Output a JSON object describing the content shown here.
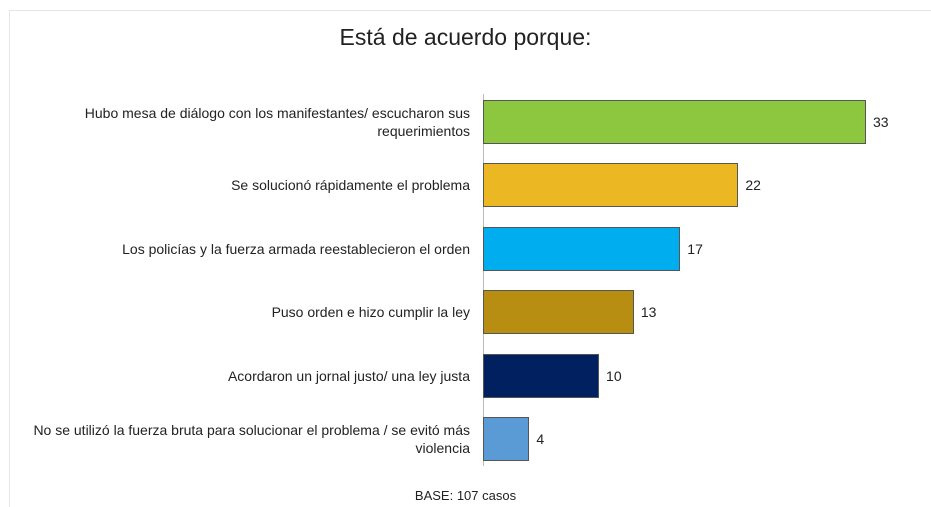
{
  "chart_data": {
    "type": "bar",
    "orientation": "horizontal",
    "title": "Está de acuerdo porque:",
    "categories": [
      "Hubo mesa de diálogo con los manifestantes/ escucharon sus requerimientos",
      "Se solucionó rápidamente el problema",
      "Los policías y la fuerza armada reestablecieron el orden",
      "Puso orden e hizo cumplir la ley",
      "Acordaron un jornal justo/ una ley justa",
      "No se utilizó la fuerza bruta para solucionar el problema / se evitó más violencia"
    ],
    "values": [
      33,
      22,
      17,
      13,
      10,
      4
    ],
    "colors": [
      "#8dc63f",
      "#ebb823",
      "#00aeef",
      "#b88e12",
      "#002060",
      "#5b9bd5"
    ],
    "note": "BASE:  107 casos"
  }
}
